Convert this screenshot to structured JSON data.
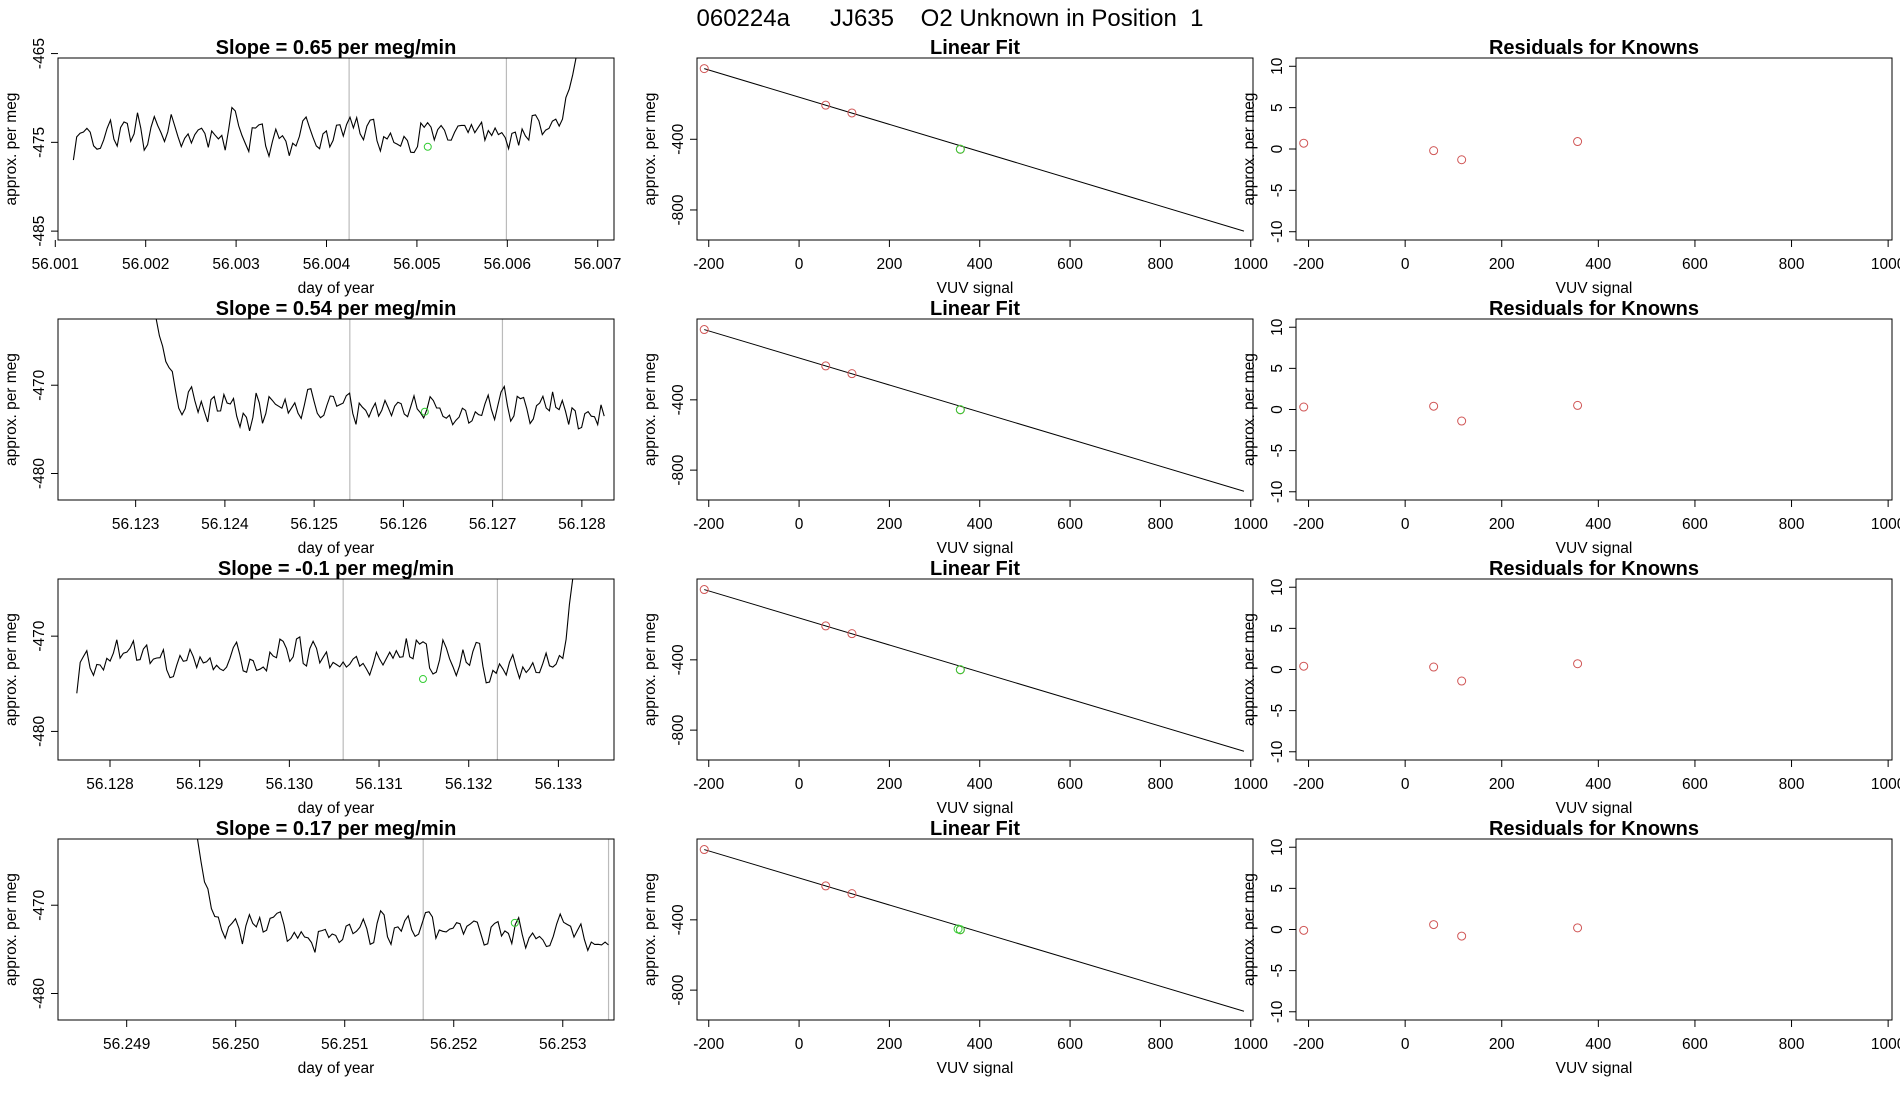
{
  "suptitle": "060224a      JJ635    O2 Unknown in Position  1",
  "colors": {
    "ts": "#000000",
    "vline": "#bbbbbb",
    "known": "#d05555",
    "unknown": "#33cc33",
    "fitline": "#000000"
  },
  "chart_data": [
    {
      "type": "line",
      "panel": "timeseries",
      "row": 1,
      "title": "Slope =  0.65  per meg/min",
      "xlabel": "day of year",
      "ylabel": "approx. per meg",
      "xlim": [
        56.00103,
        56.00718
      ],
      "ylim": [
        -486,
        -465.5
      ],
      "xticks": [
        "56.001",
        "56.002",
        "56.003",
        "56.004",
        "56.005",
        "56.006",
        "56.007"
      ],
      "yticks": [
        "-465",
        "-475",
        "-485"
      ],
      "vlines": [
        56.00425,
        56.00599
      ],
      "green_marker": {
        "x": 56.00512,
        "y": -475.5
      },
      "series_start": 56.0012,
      "series_end": 56.00676,
      "series_npts": 150,
      "series_mean": -474.0,
      "series_amp": 3.0,
      "series_head_y": -477,
      "series_tail_y": -465.5,
      "series_tail_n": 10
    },
    {
      "type": "line",
      "panel": "timeseries",
      "row": 2,
      "title": "Slope =  0.54  per meg/min",
      "xlabel": "day of year",
      "ylabel": "approx. per meg",
      "xlim": [
        56.12213,
        56.12836
      ],
      "ylim": [
        -483,
        -462.5
      ],
      "xticks": [
        "56.123",
        "56.124",
        "56.125",
        "56.126",
        "56.127",
        "56.128"
      ],
      "yticks": [
        "-470",
        "-480"
      ],
      "vlines": [
        56.1254,
        56.12711
      ],
      "green_marker": {
        "x": 56.12624,
        "y": -473
      },
      "series_start": 56.12323,
      "series_end": 56.12825,
      "series_npts": 140,
      "series_mean": -472.5,
      "series_amp": 2.8,
      "series_head_y": -462.5,
      "series_head_n": 10,
      "series_tail_y": -473.5
    },
    {
      "type": "line",
      "panel": "timeseries",
      "row": 3,
      "title": "Slope =  -0.1  per meg/min",
      "xlabel": "day of year",
      "ylabel": "approx. per meg",
      "xlim": [
        56.12742,
        56.13362
      ],
      "ylim": [
        -483,
        -464
      ],
      "xticks": [
        "56.128",
        "56.129",
        "56.130",
        "56.131",
        "56.132",
        "56.133"
      ],
      "yticks": [
        "-470",
        "-480"
      ],
      "vlines": [
        56.1306,
        56.13232
      ],
      "green_marker": {
        "x": 56.13149,
        "y": -474.5
      },
      "series_start": 56.12763,
      "series_end": 56.13316,
      "series_npts": 150,
      "series_mean": -472.5,
      "series_amp": 2.8,
      "series_head_y": -476,
      "series_tail_y": -464,
      "series_tail_n": 5
    },
    {
      "type": "line",
      "panel": "timeseries",
      "row": 4,
      "title": "Slope =  0.17  per meg/min",
      "xlabel": "day of year",
      "ylabel": "approx. per meg",
      "xlim": [
        56.24837,
        56.25347
      ],
      "ylim": [
        -483,
        -462.5
      ],
      "xticks": [
        "56.249",
        "56.250",
        "56.251",
        "56.252",
        "56.253"
      ],
      "yticks": [
        "-470",
        "-480"
      ],
      "vlines": [
        56.25172,
        56.25342
      ],
      "green_marker": {
        "x": 56.25256,
        "y": -472
      },
      "series_start": 56.24965,
      "series_end": 56.25342,
      "series_npts": 120,
      "series_mean": -473.0,
      "series_amp": 2.5,
      "series_head_y": -462.5,
      "series_head_n": 8,
      "series_tail_y": -474.5
    },
    {
      "type": "scatter",
      "panel": "fit",
      "row": 1,
      "title": "Linear Fit",
      "xlabel": "VUV signal",
      "ylabel": "approx. per meg",
      "xlim": [
        -226,
        1005
      ],
      "ylim": [
        -970,
        60
      ],
      "xticks": [
        -200,
        0,
        200,
        400,
        600,
        800,
        1000
      ],
      "yticks": [
        -400,
        -800
      ],
      "ytick_labels": [
        "-400",
        "-800"
      ],
      "line": {
        "x": [
          -210,
          985
        ],
        "y": [
          0,
          -920
        ]
      },
      "knowns": {
        "x": [
          -210,
          59,
          117,
          357
        ],
        "y": [
          0,
          -207,
          -251,
          -457
        ]
      },
      "unknown": {
        "x": [
          357
        ],
        "y": [
          -456
        ]
      }
    },
    {
      "type": "scatter",
      "panel": "fit",
      "row": 2,
      "title": "Linear Fit",
      "xlabel": "VUV signal",
      "ylabel": "approx. per meg",
      "xlim": [
        -226,
        1005
      ],
      "ylim": [
        -970,
        60
      ],
      "xticks": [
        -200,
        0,
        200,
        400,
        600,
        800,
        1000
      ],
      "yticks": [
        -400,
        -800
      ],
      "ytick_labels": [
        "-400",
        "-800"
      ],
      "line": {
        "x": [
          -210,
          985
        ],
        "y": [
          0,
          -920
        ]
      },
      "knowns": {
        "x": [
          -210,
          59,
          117,
          357
        ],
        "y": [
          0,
          -207,
          -251,
          -457
        ]
      },
      "unknown": {
        "x": [
          357
        ],
        "y": [
          -456
        ]
      }
    },
    {
      "type": "scatter",
      "panel": "fit",
      "row": 3,
      "title": "Linear Fit",
      "xlabel": "VUV signal",
      "ylabel": "approx. per meg",
      "xlim": [
        -226,
        1005
      ],
      "ylim": [
        -970,
        60
      ],
      "xticks": [
        -200,
        0,
        200,
        400,
        600,
        800,
        1000
      ],
      "yticks": [
        -400,
        -800
      ],
      "ytick_labels": [
        "-400",
        "-800"
      ],
      "line": {
        "x": [
          -210,
          985
        ],
        "y": [
          0,
          -920
        ]
      },
      "knowns": {
        "x": [
          -210,
          59,
          117,
          357
        ],
        "y": [
          0,
          -207,
          -251,
          -457
        ]
      },
      "unknown": {
        "x": [
          357
        ],
        "y": [
          -456
        ]
      }
    },
    {
      "type": "scatter",
      "panel": "fit",
      "row": 4,
      "title": "Linear Fit",
      "xlabel": "VUV signal",
      "ylabel": "approx. per meg",
      "xlim": [
        -226,
        1005
      ],
      "ylim": [
        -970,
        60
      ],
      "xticks": [
        -200,
        0,
        200,
        400,
        600,
        800,
        1000
      ],
      "yticks": [
        -400,
        -800
      ],
      "ytick_labels": [
        "-400",
        "-800"
      ],
      "line": {
        "x": [
          -210,
          985
        ],
        "y": [
          0,
          -920
        ]
      },
      "knowns": {
        "x": [
          -210,
          59,
          117,
          357
        ],
        "y": [
          0,
          -207,
          -251,
          -457
        ]
      },
      "unknown": {
        "x": [
          352,
          357
        ],
        "y": [
          -452,
          -456
        ]
      }
    },
    {
      "type": "scatter",
      "panel": "resid",
      "row": 1,
      "title": "Residuals for Knowns",
      "xlabel": "VUV signal",
      "ylabel": "approx. per meg",
      "xlim": [
        -226,
        1008
      ],
      "ylim": [
        -11,
        11
      ],
      "xticks": [
        -200,
        0,
        200,
        400,
        600,
        800,
        1000
      ],
      "yticks": [
        10,
        5,
        0,
        -5,
        -10
      ],
      "points": {
        "x": [
          -210,
          59,
          117,
          357
        ],
        "y": [
          0.7,
          -0.2,
          -1.3,
          0.9
        ]
      }
    },
    {
      "type": "scatter",
      "panel": "resid",
      "row": 2,
      "title": "Residuals for Knowns",
      "xlabel": "VUV signal",
      "ylabel": "approx. per meg",
      "xlim": [
        -226,
        1008
      ],
      "ylim": [
        -11,
        11
      ],
      "xticks": [
        -200,
        0,
        200,
        400,
        600,
        800,
        1000
      ],
      "yticks": [
        10,
        5,
        0,
        -5,
        -10
      ],
      "points": {
        "x": [
          -210,
          59,
          117,
          357
        ],
        "y": [
          0.3,
          0.4,
          -1.4,
          0.5
        ]
      }
    },
    {
      "type": "scatter",
      "panel": "resid",
      "row": 3,
      "title": "Residuals for Knowns",
      "xlabel": "VUV signal",
      "ylabel": "approx. per meg",
      "xlim": [
        -226,
        1008
      ],
      "ylim": [
        -11,
        11
      ],
      "xticks": [
        -200,
        0,
        200,
        400,
        600,
        800,
        1000
      ],
      "yticks": [
        10,
        5,
        0,
        -5,
        -10
      ],
      "points": {
        "x": [
          -210,
          59,
          117,
          357
        ],
        "y": [
          0.4,
          0.3,
          -1.4,
          0.7
        ]
      }
    },
    {
      "type": "scatter",
      "panel": "resid",
      "row": 4,
      "title": "Residuals for Knowns",
      "xlabel": "VUV signal",
      "ylabel": "approx. per meg",
      "xlim": [
        -226,
        1008
      ],
      "ylim": [
        -11,
        11
      ],
      "xticks": [
        -200,
        0,
        200,
        400,
        600,
        800,
        1000
      ],
      "yticks": [
        10,
        5,
        0,
        -5,
        -10
      ],
      "points": {
        "x": [
          -210,
          59,
          117,
          357
        ],
        "y": [
          -0.1,
          0.6,
          -0.8,
          0.2
        ]
      }
    }
  ]
}
